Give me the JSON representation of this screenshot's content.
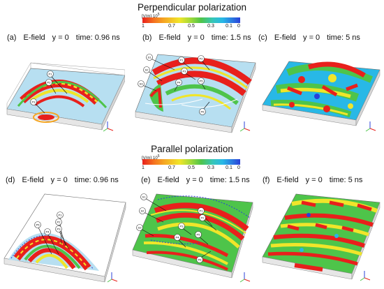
{
  "sections": [
    {
      "title": "Perpendicular polarization",
      "colorbar": {
        "unit": "[V/m]·10",
        "unit_exp": "5",
        "ticks": [
          "1",
          "0.7",
          "0.5",
          "0.3",
          "0.1",
          "0"
        ]
      },
      "panels": [
        {
          "id": "(a)",
          "quantity": "E-field",
          "coord": "y = 0",
          "time": "time: 0.96 ns",
          "callouts": [
            "P1",
            "P2",
            "P3"
          ]
        },
        {
          "id": "(b)",
          "quantity": "E-field",
          "coord": "y = 0",
          "time": "time: 1.5 ns",
          "callouts": [
            "S1",
            "S2",
            "S3",
            "P1",
            "P2",
            "P3",
            "P4",
            "P5",
            "P6"
          ]
        },
        {
          "id": "(c)",
          "quantity": "E-field",
          "coord": "y = 0",
          "time": "time: 5 ns",
          "callouts": []
        }
      ]
    },
    {
      "title": "Parallel polarization",
      "colorbar": {
        "unit": "[V/m]·10",
        "unit_exp": "5",
        "ticks": [
          "1",
          "0.7",
          "0.5",
          "0.3",
          "0.1",
          "0"
        ]
      },
      "panels": [
        {
          "id": "(d)",
          "quantity": "E-field",
          "coord": "y = 0",
          "time": "time: 0.96 ns",
          "callouts": [
            "P1",
            "P2",
            "P3",
            "P4",
            "P5"
          ]
        },
        {
          "id": "(e)",
          "quantity": "E-field",
          "coord": "y = 0",
          "time": "time: 1.5 ns",
          "callouts": [
            "S1",
            "S2",
            "S3",
            "P1",
            "P2",
            "P3",
            "P4",
            "P5",
            "P6"
          ]
        },
        {
          "id": "(f)",
          "quantity": "E-field",
          "coord": "y = 0",
          "time": "time: 5 ns",
          "callouts": []
        }
      ]
    }
  ],
  "colors": {
    "high": "#e8201c",
    "mid_high": "#f5a623",
    "mid": "#f0e52a",
    "mid_low": "#4ec44a",
    "low": "#28b8e6",
    "min": "#2a40d8"
  }
}
